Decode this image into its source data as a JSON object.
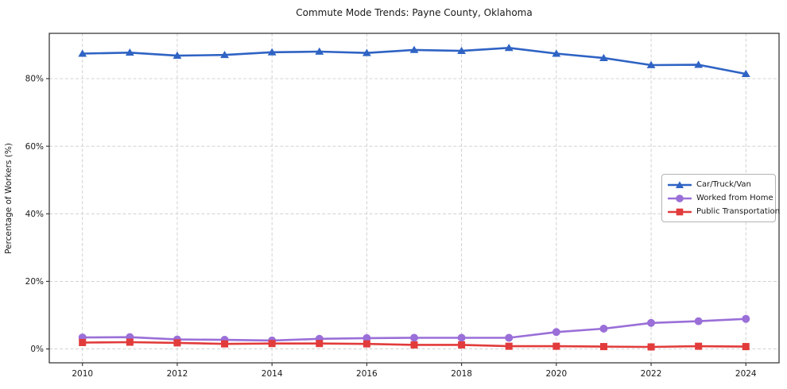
{
  "chart_data": {
    "type": "line",
    "title": "Commute Mode Trends: Payne County, Oklahoma",
    "xlabel": "",
    "ylabel": "Percentage of Workers (%)",
    "x": [
      2010,
      2011,
      2012,
      2013,
      2014,
      2015,
      2016,
      2017,
      2018,
      2019,
      2020,
      2021,
      2022,
      2023,
      2024
    ],
    "series": [
      {
        "name": "Car/Truck/Van",
        "marker": "triangle",
        "color": "#2f63c4",
        "values": [
          87.4,
          87.7,
          86.8,
          87.0,
          87.8,
          88.0,
          87.6,
          88.5,
          88.2,
          89.1,
          87.4,
          86.1,
          84.0,
          84.1,
          81.4
        ]
      },
      {
        "name": "Worked from Home",
        "marker": "circle",
        "color": "#9a6fd8",
        "values": [
          3.4,
          3.5,
          2.8,
          2.7,
          2.5,
          3.0,
          3.2,
          3.3,
          3.3,
          3.3,
          5.0,
          6.0,
          7.7,
          8.2,
          8.9
        ]
      },
      {
        "name": "Public Transportation",
        "marker": "square",
        "color": "#e23b3b",
        "values": [
          1.9,
          2.0,
          1.8,
          1.5,
          1.6,
          1.6,
          1.5,
          1.2,
          1.2,
          0.8,
          0.8,
          0.7,
          0.6,
          0.8,
          0.7
        ]
      }
    ],
    "x_ticks": [
      2010,
      2012,
      2014,
      2016,
      2018,
      2020,
      2022,
      2024
    ],
    "y_ticks": [
      0,
      20,
      40,
      60,
      80
    ],
    "y_tick_suffix": "%",
    "xlim": [
      2009.3,
      2024.7
    ],
    "ylim": [
      -4.1,
      93.4
    ],
    "grid": true,
    "legend_position": "center right",
    "colors": {
      "grid": "#cccccc",
      "spine": "#2b2b2b",
      "text": "#1a1a1a",
      "background": "#ffffff"
    }
  }
}
